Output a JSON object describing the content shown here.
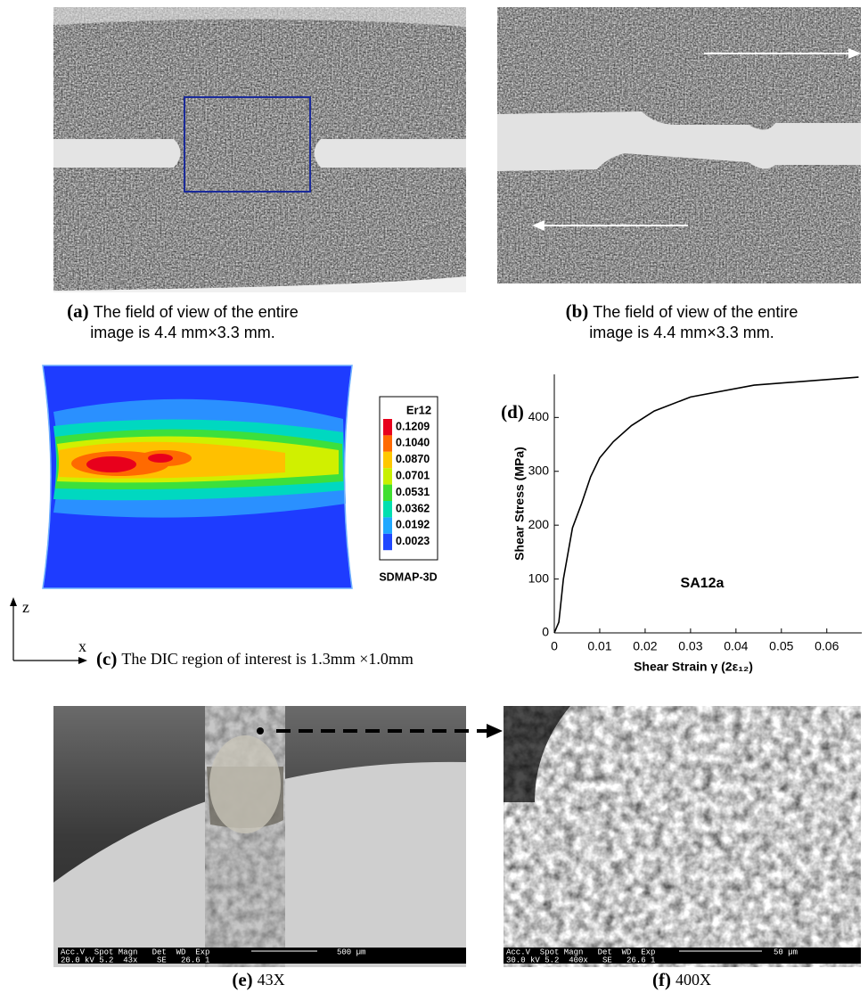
{
  "panels": [
    {
      "label": "(a)",
      "caption": [
        "The field of view of the entire",
        "image is 4.4 mm×3.3 mm."
      ]
    },
    {
      "label": "(b)",
      "caption": [
        "The field of view of the entire",
        "image is 4.4 mm×3.3 mm."
      ]
    },
    {
      "label": "(c)",
      "caption": [
        "The DIC region of interest is 1.3mm ×1.0mm"
      ],
      "legend": {
        "title": "Er12",
        "labels": [
          "0.1209",
          "0.1040",
          "0.0870",
          "0.0701",
          "0.0531",
          "0.0362",
          "0.0192",
          "0.0023"
        ],
        "colors": [
          "#e8001c",
          "#ff6a00",
          "#ffc800",
          "#c8f000",
          "#40e030",
          "#00e0b0",
          "#20a8ff",
          "#2048ff"
        ]
      },
      "software": "SDMAP-3D",
      "axes": [
        "z",
        "x"
      ]
    },
    {
      "label": "(e)",
      "caption": [
        "43X"
      ],
      "sem_header": "Acc.V  Spot Magn   Det  WD  Exp",
      "sem_values": "20.0 kV 5.2  43x    SE   26.6 1",
      "scale_bar": "500 µm"
    },
    {
      "label": "(f)",
      "caption": [
        "400X"
      ],
      "sem_header": "Acc.V  Spot Magn   Det  WD  Exp",
      "sem_values": "30.0 kV 5.2  400x   SE   26.6 1",
      "scale_bar": "50 µm"
    }
  ],
  "chart_data": {
    "type": "line",
    "label": "(d)",
    "annotation": "SA12a",
    "x_label": "Shear Strain γ (2ε₁₂)",
    "y_label": "Shear Stress (MPa)",
    "x": [
      0,
      0.001,
      0.002,
      0.004,
      0.006,
      0.008,
      0.01,
      0.013,
      0.017,
      0.022,
      0.03,
      0.044,
      0.067
    ],
    "values": [
      0,
      20,
      100,
      195,
      240,
      290,
      325,
      355,
      385,
      412,
      438,
      460,
      475
    ],
    "color": "#000000",
    "xlim": [
      0,
      0.0677
    ],
    "ylim": [
      0,
      480
    ],
    "xticks": [
      0,
      0.01,
      0.02,
      0.03,
      0.04,
      0.05,
      0.06
    ],
    "yticks": [
      0,
      100,
      200,
      300,
      400
    ]
  }
}
